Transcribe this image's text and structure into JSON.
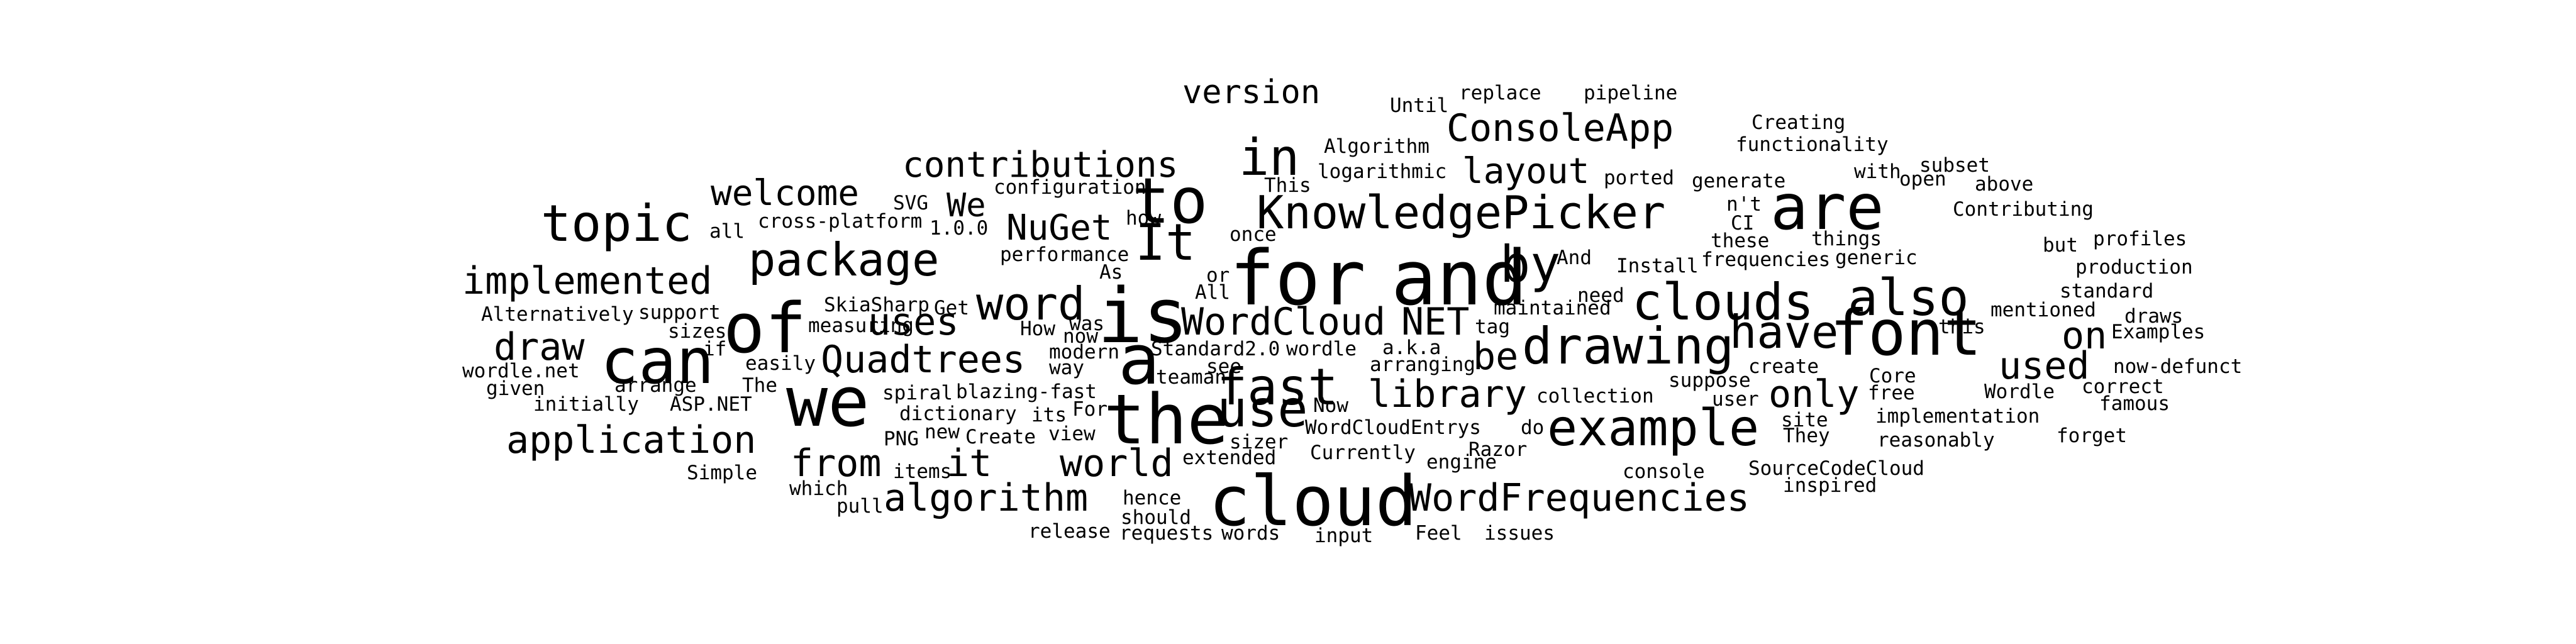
{
  "text_color": "#000000",
  "background_color": "#ffffff",
  "words": [
    "version",
    "Until",
    "replace",
    "pipeline",
    "ConsoleApp",
    "Creating",
    "Algorithm",
    "functionality",
    "in",
    "are",
    "contributions",
    "layout",
    "logarithmic",
    "with",
    "subset",
    "This",
    "ported",
    "generate",
    "open",
    "above",
    "welcome",
    "configuration",
    "to",
    "KnowledgePicker",
    "n't",
    "Contributing",
    "SVG",
    "We",
    "topic",
    "1.0.0",
    "NuGet",
    "how",
    "CI",
    "once",
    "It",
    "all",
    "cross-platform",
    "these",
    "things",
    "profiles",
    "but",
    "package",
    "performance",
    "for",
    "and",
    "by",
    "And",
    "Install",
    "frequencies",
    "generic",
    "production",
    "As",
    "implemented",
    "All",
    "or",
    "maintained",
    "need",
    "clouds",
    "also",
    "standard",
    "mentioned",
    "draws",
    "word",
    "Alternatively",
    "is",
    "support",
    "SkiaSharp",
    "Get",
    "uses",
    "WordCloud",
    "NET",
    "of",
    "measuring",
    "was",
    "How",
    "tag",
    "have",
    "font",
    "this",
    "Examples",
    "sizes",
    "drawing",
    "draw",
    "modern",
    "now",
    "Standard2.0",
    "wordle",
    "a.k.a",
    "be",
    "on",
    "wordle.net",
    "if",
    "easily",
    "Quadtrees",
    "way",
    "can",
    "arranging",
    "create",
    "used",
    "now-defunct",
    "The",
    "a",
    "Core",
    "given",
    "see",
    "teaman",
    "suppose",
    "correct",
    "arrange",
    "spiral",
    "blazing-fast",
    "library",
    "collection",
    "only",
    "free",
    "Wordle",
    "we",
    "For",
    "the",
    "use",
    "user",
    "famous",
    "initially",
    "ASP.NET",
    "Now",
    "example",
    "implementation",
    "dictionary",
    "its",
    "site",
    "WordCloudEntrys",
    "do",
    "PNG",
    "view",
    "They",
    "forget",
    "new",
    "Create",
    "application",
    "fast",
    "reasonably",
    "sizer",
    "Razor",
    "Currently",
    "extended",
    "world",
    "it",
    "engine",
    "from",
    "console",
    "SourceCodeCloud",
    "items",
    "Simple",
    "inspired",
    "which",
    "hence",
    "cloud",
    "algorithm",
    "WordFrequencies",
    "pull",
    "should",
    "release",
    "requests",
    "words",
    "input",
    "Feel",
    "issues"
  ]
}
